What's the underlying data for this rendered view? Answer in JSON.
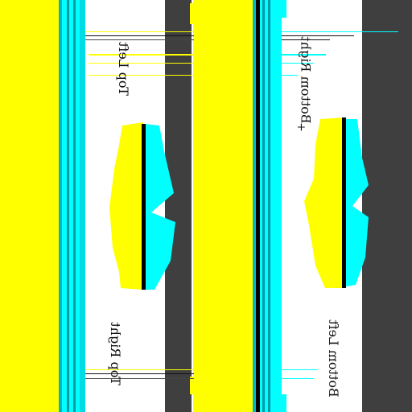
{
  "colors": {
    "yellow": "#ffff00",
    "cyan": "#00ffff",
    "teal": "#00b7c7",
    "dark_gray": "#3f3f3f",
    "black": "#000000",
    "white": "#ffffff"
  },
  "labels": {
    "top_left": "Top Left",
    "top_right": "Top Right",
    "bottom_right": "Bottom Right",
    "bottom_left": "Bottom Left",
    "bottom_right_mark": "+"
  },
  "icons": {
    "shape_1": "jagged-wing-shape",
    "shape_2": "jagged-wing-shape"
  }
}
